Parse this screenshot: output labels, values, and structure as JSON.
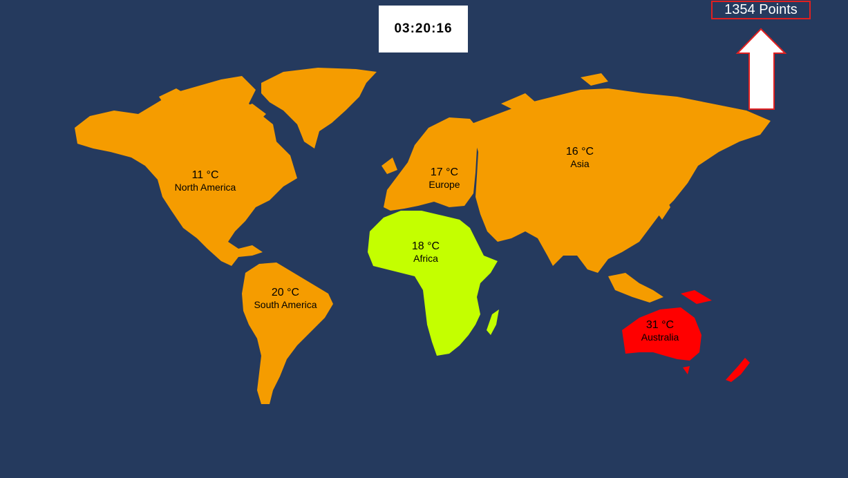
{
  "timer": "03:20:16",
  "score": "1354 Points",
  "colors": {
    "background": "#253a5e",
    "neutral": "#f59c00",
    "cool": "#c4ff00",
    "hot": "#ff0000",
    "score_border": "#e02020"
  },
  "continents": {
    "north_america": {
      "temp": "11 °C",
      "name": "North America",
      "state": "neutral"
    },
    "south_america": {
      "temp": "20 °C",
      "name": "South America",
      "state": "neutral"
    },
    "europe": {
      "temp": "17 °C",
      "name": "Europe",
      "state": "neutral"
    },
    "africa": {
      "temp": "18 °C",
      "name": "Africa",
      "state": "cool"
    },
    "asia": {
      "temp": "16 °C",
      "name": "Asia",
      "state": "neutral"
    },
    "australia": {
      "temp": "31 °C",
      "name": "Australia",
      "state": "hot"
    }
  },
  "icons": {
    "score_arrow": "up-arrow-icon"
  }
}
